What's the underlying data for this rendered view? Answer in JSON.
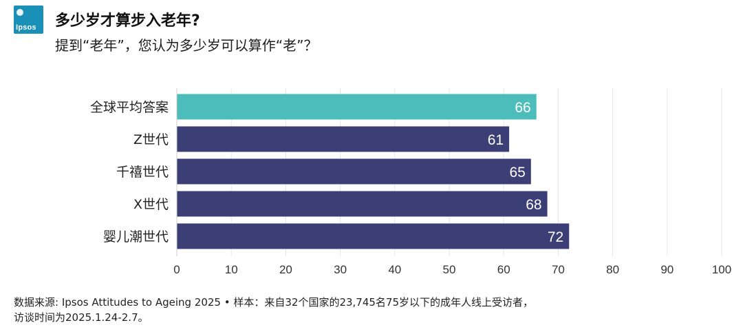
{
  "header": {
    "logo_text": "Ipsos",
    "title": "多少岁才算步入老年?",
    "subtitle": "提到“老年”，您认为多少岁可以算作“老”？"
  },
  "chart_data": {
    "type": "bar",
    "orientation": "horizontal",
    "categories": [
      "全球平均答案",
      "Z世代",
      "千禧世代",
      "X世代",
      "婴儿潮世代"
    ],
    "values": [
      66,
      61,
      65,
      68,
      72
    ],
    "bar_colors": [
      "#4dbdbb",
      "#3b3f75",
      "#3b3f75",
      "#3b3f75",
      "#3b3f75"
    ],
    "xlim": [
      0,
      100
    ],
    "xticks": [
      0,
      10,
      20,
      30,
      40,
      50,
      60,
      70,
      80,
      90,
      100
    ],
    "grid": true,
    "title": "",
    "xlabel": "",
    "ylabel": ""
  },
  "footer": {
    "source_line1": "数据来源: Ipsos Attitudes to Ageing 2025 • 样本：来自32个国家的23,745名75岁以下的成年人线上受访者，",
    "source_line2": "访谈时间为2025.1.24-2.7。"
  }
}
